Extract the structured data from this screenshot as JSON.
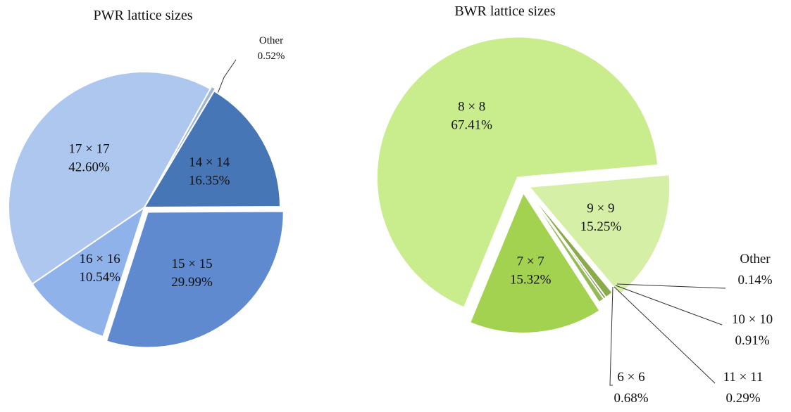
{
  "chart_data": [
    {
      "type": "pie",
      "title": "PWR lattice sizes",
      "categories": [
        "Other",
        "14 × 14",
        "15 × 15",
        "16 × 16",
        "17 × 17"
      ],
      "values": [
        0.52,
        16.35,
        29.99,
        10.54,
        42.6
      ],
      "value_labels": [
        "0.52%",
        "16.35%",
        "29.99%",
        "10.54%",
        "42.60%"
      ],
      "colors": [
        "#9fb7d8",
        "#4776b6",
        "#5f8ad0",
        "#8fb2ea",
        "#adc7ef"
      ]
    },
    {
      "type": "pie",
      "title": "BWR lattice sizes",
      "categories": [
        "9 × 9",
        "Other",
        "10 × 10",
        "11 × 11",
        "6 × 6",
        "7 × 7",
        "8 × 8"
      ],
      "values": [
        15.25,
        0.14,
        0.91,
        0.29,
        0.68,
        15.32,
        67.41
      ],
      "value_labels": [
        "15.25%",
        "0.14%",
        "0.91%",
        "0.29%",
        "0.68%",
        "15.32%",
        "67.41%"
      ],
      "colors": [
        "#d6efa6",
        "#7f9e45",
        "#8aab4c",
        "#6f8f3a",
        "#95b955",
        "#a3d250",
        "#c9ec8c"
      ]
    }
  ]
}
